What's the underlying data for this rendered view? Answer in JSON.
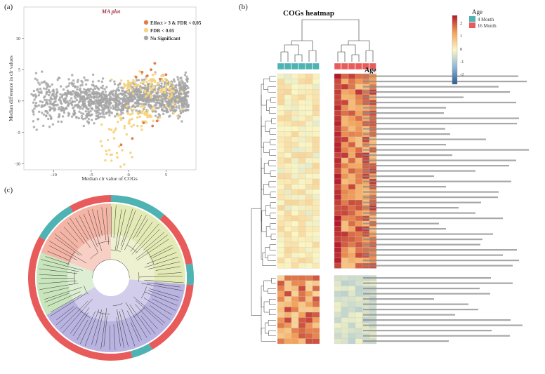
{
  "panels": {
    "a": "(a)",
    "b": "(b)",
    "c": "(c)"
  },
  "colors": {
    "sig_effect": "#e07b4f",
    "sig_fdr": "#f6d57e",
    "nonsig": "#a6a6a6",
    "group_4m": "#4fb3b3",
    "group_16m": "#e85b5b",
    "scale_high": "#b2182b",
    "scale_mid": "#fbf7c4",
    "scale_low": "#2c5c8c"
  },
  "ma_plot": {
    "title": "MA plot",
    "xlabel": "Median clr value of COGs",
    "ylabel": "Median difference in clr values",
    "legend": [
      "Effect > 3 & FDR < 0.05",
      "FDR < 0.05",
      "No Significant"
    ]
  },
  "chart_data": [
    {
      "type": "scatter",
      "title": "MA plot",
      "xlabel": "Median clr value of COGs",
      "ylabel": "Median difference in clr values",
      "xlim": [
        -14,
        9
      ],
      "ylim": [
        -11,
        15
      ],
      "xticks": [
        -10,
        -5,
        0,
        5
      ],
      "yticks": [
        -10,
        -5,
        0,
        5,
        10
      ],
      "legend_position": "top-right",
      "series": [
        {
          "name": "Effect > 3 & FDR < 0.05",
          "color": "#e07b4f",
          "points": [
            [
              2.5,
              4.0
            ],
            [
              3.0,
              5.0
            ],
            [
              3.5,
              6.0
            ],
            [
              4.2,
              3.5
            ],
            [
              1.0,
              3.8
            ],
            [
              2.0,
              -3.5
            ],
            [
              3.2,
              -4.0
            ],
            [
              0.5,
              -6.0
            ],
            [
              -1.0,
              -7.0
            ],
            [
              5.0,
              4.2
            ],
            [
              3.8,
              -3.2
            ],
            [
              1.8,
              4.6
            ]
          ]
        },
        {
          "name": "FDR < 0.05",
          "color": "#f6d57e",
          "points": [
            [
              1.0,
              2.5
            ],
            [
              2.0,
              3.0
            ],
            [
              3.0,
              2.0
            ],
            [
              4.0,
              2.8
            ],
            [
              5.0,
              2.2
            ],
            [
              0.5,
              -2.0
            ],
            [
              -1.0,
              -3.0
            ],
            [
              1.5,
              -2.5
            ],
            [
              2.5,
              -2.0
            ],
            [
              -2.0,
              -5.0
            ],
            [
              -3.0,
              -8.0
            ],
            [
              -1.5,
              -9.0
            ],
            [
              0.0,
              3.0
            ],
            [
              3.5,
              3.2
            ],
            [
              4.5,
              1.8
            ],
            [
              2.2,
              -1.8
            ],
            [
              -0.5,
              2.4
            ],
            [
              1.2,
              -4.0
            ],
            [
              6.0,
              1.5
            ],
            [
              5.5,
              -1.2
            ]
          ]
        },
        {
          "name": "No Significant",
          "color": "#a6a6a6",
          "distribution": "dense cloud centered near y = 0 over x from -13 to 8, spread approx +/-3"
        }
      ]
    },
    {
      "type": "heatmap",
      "title": "COGs heatmap",
      "column_annotation": "Age",
      "legend_title": "Age",
      "groups": [
        "4 Month",
        "16 Month"
      ],
      "colorbar_ticks": [
        2,
        1,
        0,
        -1,
        -2
      ],
      "columns_per_group": 6
    }
  ],
  "heatmap": {
    "title": "COGs heatmap",
    "annotation_label": "Age",
    "legend_title": "Age",
    "legend_items": [
      "4 Month",
      "16 Month"
    ],
    "colorbar_ticks": [
      "2",
      "1",
      "0",
      "-1",
      "-2"
    ]
  }
}
